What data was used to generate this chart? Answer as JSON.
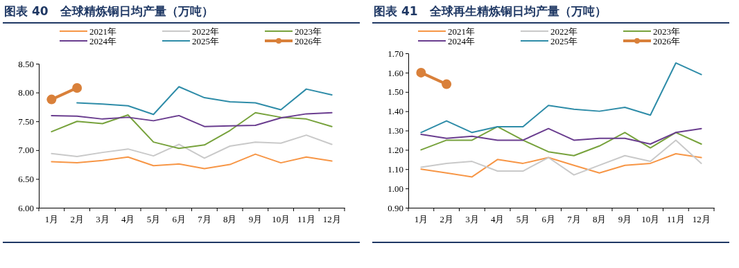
{
  "chart_data": [
    {
      "type": "line",
      "title": "图表 40　全球精炼铜日均产量（万吨）",
      "categories": [
        "1月",
        "2月",
        "3月",
        "4月",
        "5月",
        "6月",
        "7月",
        "8月",
        "9月",
        "10月",
        "11月",
        "12月"
      ],
      "ylim": [
        6,
        8.5
      ],
      "yticks": [
        {
          "value": 6,
          "label": "6.00"
        },
        {
          "value": 6.5,
          "label": "6.50"
        },
        {
          "value": 7,
          "label": "7.00"
        },
        {
          "value": 7.5,
          "label": "7.50"
        },
        {
          "value": 8,
          "label": "8.00"
        },
        {
          "value": 8.5,
          "label": "8.50"
        }
      ],
      "grid": false,
      "legend": "top",
      "marker": "none",
      "series": [
        {
          "name": "2021年",
          "color": "#f79646",
          "values": [
            6.8,
            6.78,
            6.82,
            6.88,
            6.73,
            6.76,
            6.68,
            6.75,
            6.93,
            6.78,
            6.88,
            6.81
          ]
        },
        {
          "name": "2022年",
          "color": "#c9c9c9",
          "values": [
            6.94,
            6.89,
            6.96,
            7.02,
            6.9,
            7.1,
            6.86,
            7.07,
            7.14,
            7.12,
            7.26,
            7.1
          ]
        },
        {
          "name": "2023年",
          "color": "#77a23c",
          "values": [
            7.32,
            7.5,
            7.46,
            7.61,
            7.14,
            7.03,
            7.09,
            7.34,
            7.65,
            7.57,
            7.54,
            7.41
          ]
        },
        {
          "name": "2024年",
          "color": "#6a3d8f",
          "values": [
            7.6,
            7.59,
            7.54,
            7.57,
            7.51,
            7.6,
            7.41,
            7.42,
            7.43,
            7.56,
            7.63,
            7.65
          ]
        },
        {
          "name": "2025年",
          "color": "#2e8ca8",
          "values": [
            null,
            7.82,
            7.8,
            7.77,
            7.62,
            8.1,
            7.91,
            7.84,
            7.82,
            7.7,
            8.06,
            7.96
          ]
        },
        {
          "name": "2026年",
          "color": "#d9803a",
          "marker": "circle",
          "values": [
            7.88,
            8.08,
            null,
            null,
            null,
            null,
            null,
            null,
            null,
            null,
            null,
            null
          ]
        }
      ]
    },
    {
      "type": "line",
      "title": "图表 41　全球再生精炼铜日均产量（万吨）",
      "categories": [
        "1月",
        "2月",
        "3月",
        "4月",
        "5月",
        "6月",
        "7月",
        "8月",
        "9月",
        "10月",
        "11月",
        "12月"
      ],
      "ylim": [
        0.9,
        1.7
      ],
      "yticks": [
        {
          "value": 0.9,
          "label": "0.90"
        },
        {
          "value": 1,
          "label": "1.00"
        },
        {
          "value": 1.1,
          "label": "1.10"
        },
        {
          "value": 1.2,
          "label": "1.20"
        },
        {
          "value": 1.3,
          "label": "1.30"
        },
        {
          "value": 1.4,
          "label": "1.40"
        },
        {
          "value": 1.5,
          "label": "1.50"
        },
        {
          "value": 1.6,
          "label": "1.60"
        },
        {
          "value": 1.7,
          "label": "1.70"
        }
      ],
      "grid": false,
      "legend": "top",
      "marker": "none",
      "series": [
        {
          "name": "2021年",
          "color": "#f79646",
          "values": [
            1.1,
            1.08,
            1.06,
            1.15,
            1.13,
            1.16,
            1.12,
            1.08,
            1.12,
            1.13,
            1.18,
            1.16
          ]
        },
        {
          "name": "2022年",
          "color": "#c9c9c9",
          "values": [
            1.11,
            1.13,
            1.14,
            1.09,
            1.09,
            1.16,
            1.07,
            1.12,
            1.17,
            1.14,
            1.25,
            1.13
          ]
        },
        {
          "name": "2023年",
          "color": "#77a23c",
          "values": [
            1.2,
            1.25,
            1.25,
            1.32,
            1.25,
            1.19,
            1.17,
            1.22,
            1.29,
            1.21,
            1.29,
            1.23
          ]
        },
        {
          "name": "2024年",
          "color": "#6a3d8f",
          "values": [
            1.28,
            1.26,
            1.27,
            1.25,
            1.25,
            1.31,
            1.25,
            1.26,
            1.26,
            1.23,
            1.29,
            1.31
          ]
        },
        {
          "name": "2025年",
          "color": "#2e8ca8",
          "values": [
            1.29,
            1.35,
            1.29,
            1.32,
            1.32,
            1.43,
            1.41,
            1.4,
            1.42,
            1.38,
            1.65,
            1.59
          ]
        },
        {
          "name": "2026年",
          "color": "#d9803a",
          "marker": "circle",
          "values": [
            1.6,
            1.54,
            null,
            null,
            null,
            null,
            null,
            null,
            null,
            null,
            null,
            null
          ]
        }
      ]
    }
  ]
}
